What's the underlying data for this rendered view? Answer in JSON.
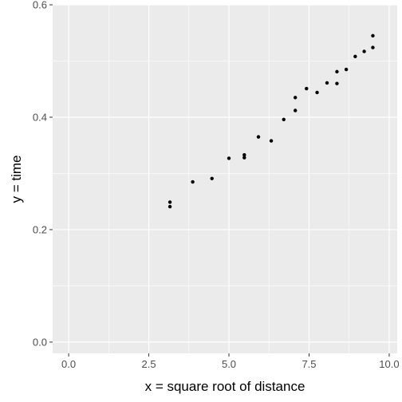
{
  "chart_data": {
    "type": "scatter",
    "title": "",
    "xlabel": "x = square root of distance",
    "ylabel": "y = time",
    "xlim": [
      -0.5,
      10.25
    ],
    "ylim": [
      -0.02,
      0.6
    ],
    "x_ticks": [
      0.0,
      2.5,
      5.0,
      7.5,
      10.0
    ],
    "x_tick_labels": [
      "0.0",
      "2.5",
      "5.0",
      "7.5",
      "10.0"
    ],
    "y_ticks": [
      0.0,
      0.2,
      0.4,
      0.6
    ],
    "y_tick_labels": [
      "0.0",
      "0.2",
      "0.4",
      "0.6"
    ],
    "grid": true,
    "points": [
      {
        "x": 3.16,
        "y": 0.249
      },
      {
        "x": 3.16,
        "y": 0.241
      },
      {
        "x": 3.87,
        "y": 0.285
      },
      {
        "x": 4.47,
        "y": 0.291
      },
      {
        "x": 5.0,
        "y": 0.327
      },
      {
        "x": 5.48,
        "y": 0.333
      },
      {
        "x": 5.48,
        "y": 0.328
      },
      {
        "x": 5.92,
        "y": 0.365
      },
      {
        "x": 6.32,
        "y": 0.358
      },
      {
        "x": 6.71,
        "y": 0.396
      },
      {
        "x": 7.07,
        "y": 0.435
      },
      {
        "x": 7.07,
        "y": 0.412
      },
      {
        "x": 7.42,
        "y": 0.451
      },
      {
        "x": 7.75,
        "y": 0.444
      },
      {
        "x": 8.06,
        "y": 0.461
      },
      {
        "x": 8.37,
        "y": 0.481
      },
      {
        "x": 8.37,
        "y": 0.46
      },
      {
        "x": 8.66,
        "y": 0.485
      },
      {
        "x": 8.94,
        "y": 0.508
      },
      {
        "x": 9.22,
        "y": 0.517
      },
      {
        "x": 9.49,
        "y": 0.545
      },
      {
        "x": 9.49,
        "y": 0.524
      }
    ],
    "colors": {
      "panel_background": "#ebebeb",
      "grid_line": "#ffffff",
      "point": "#000000",
      "tick": "#333333"
    }
  }
}
